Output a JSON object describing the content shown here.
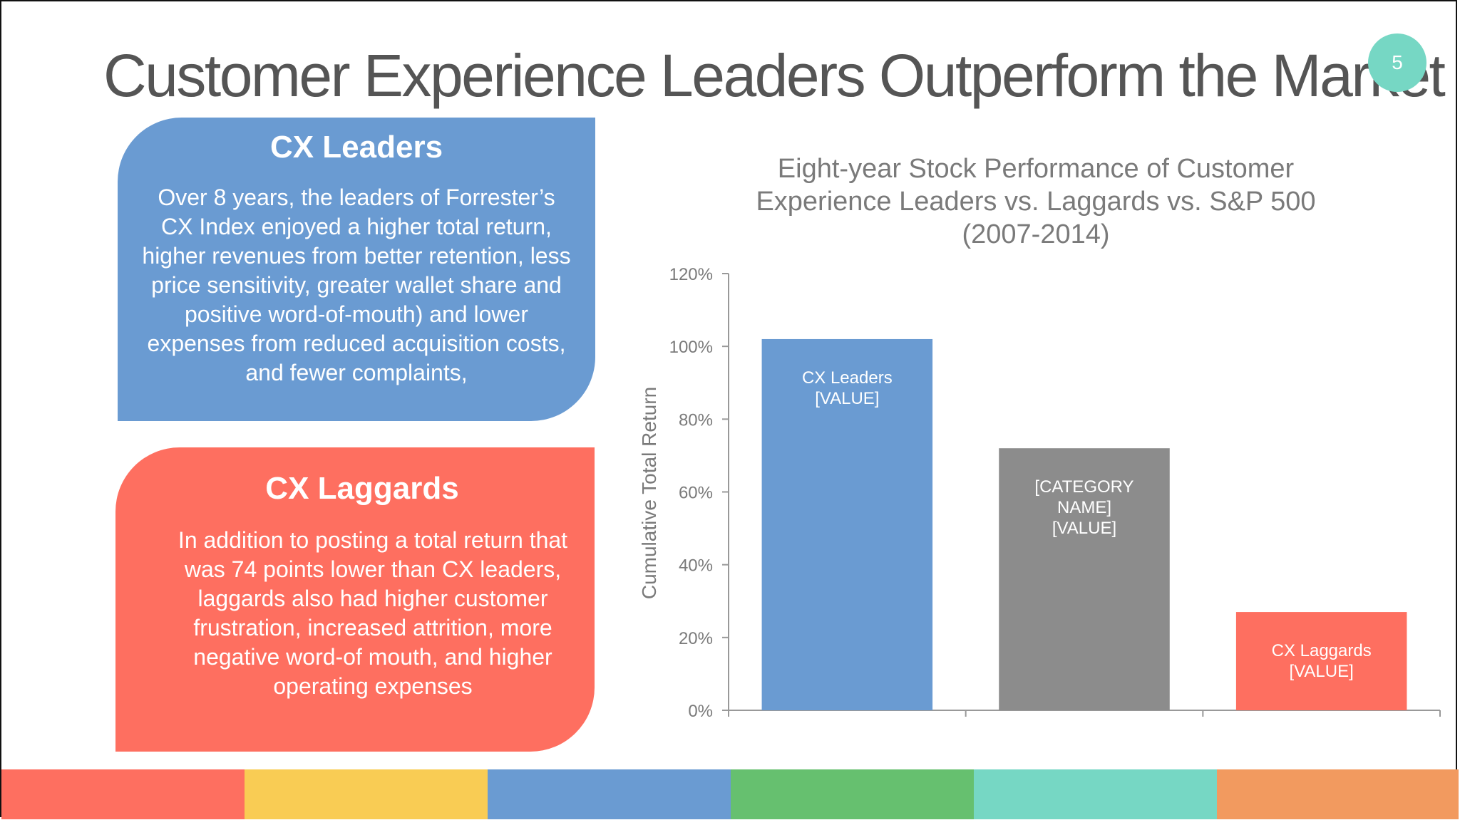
{
  "slide": {
    "title": "Customer Experience Leaders Outperform the Market",
    "page_number": "5"
  },
  "panels": {
    "leaders": {
      "heading": "CX Leaders",
      "body": "Over 8 years, the leaders of Forrester’s CX Index enjoyed a higher total return, higher revenues from better retention, less price sensitivity, greater wallet share and positive word-of-mouth) and lower expenses from reduced acquisition costs, and fewer complaints,"
    },
    "laggards": {
      "heading": "CX Laggards",
      "body": "In addition to posting a total return that was 74 points lower than CX leaders, laggards also had  higher customer frustration, increased attrition, more negative word-of mouth, and higher operating expenses"
    }
  },
  "colors": {
    "leaders": "#6a9bd2",
    "laggards": "#fe6f60",
    "sp500": "#8c8c8c",
    "badge": "#76d7c4",
    "stripes": [
      "#fe6f60",
      "#f9cc54",
      "#6a9bd2",
      "#66c06f",
      "#76d7c4",
      "#f29a5f"
    ]
  },
  "chart_data": {
    "type": "bar",
    "title": "Eight-year Stock Performance of Customer Experience Leaders vs. Laggards vs. S&P 500 (2007-2014)",
    "title_lines": [
      "Eight-year Stock Performance of Customer",
      "Experience Leaders vs. Laggards vs. S&P 500",
      "(2007-2014)"
    ],
    "ylabel": "Cumulative Total Return",
    "xlabel": "",
    "ylim": [
      0,
      120
    ],
    "y_ticks": [
      "0%",
      "20%",
      "40%",
      "60%",
      "80%",
      "100%",
      "120%"
    ],
    "grid": false,
    "values": [
      102,
      72,
      27
    ],
    "bar_labels": [
      [
        "CX Leaders",
        "[VALUE]"
      ],
      [
        "[CATEGORY",
        "NAME]",
        "[VALUE]"
      ],
      [
        "CX Laggards",
        "[VALUE]"
      ]
    ],
    "bar_colors": [
      "#6a9bd2",
      "#8c8c8c",
      "#fe6f60"
    ]
  }
}
